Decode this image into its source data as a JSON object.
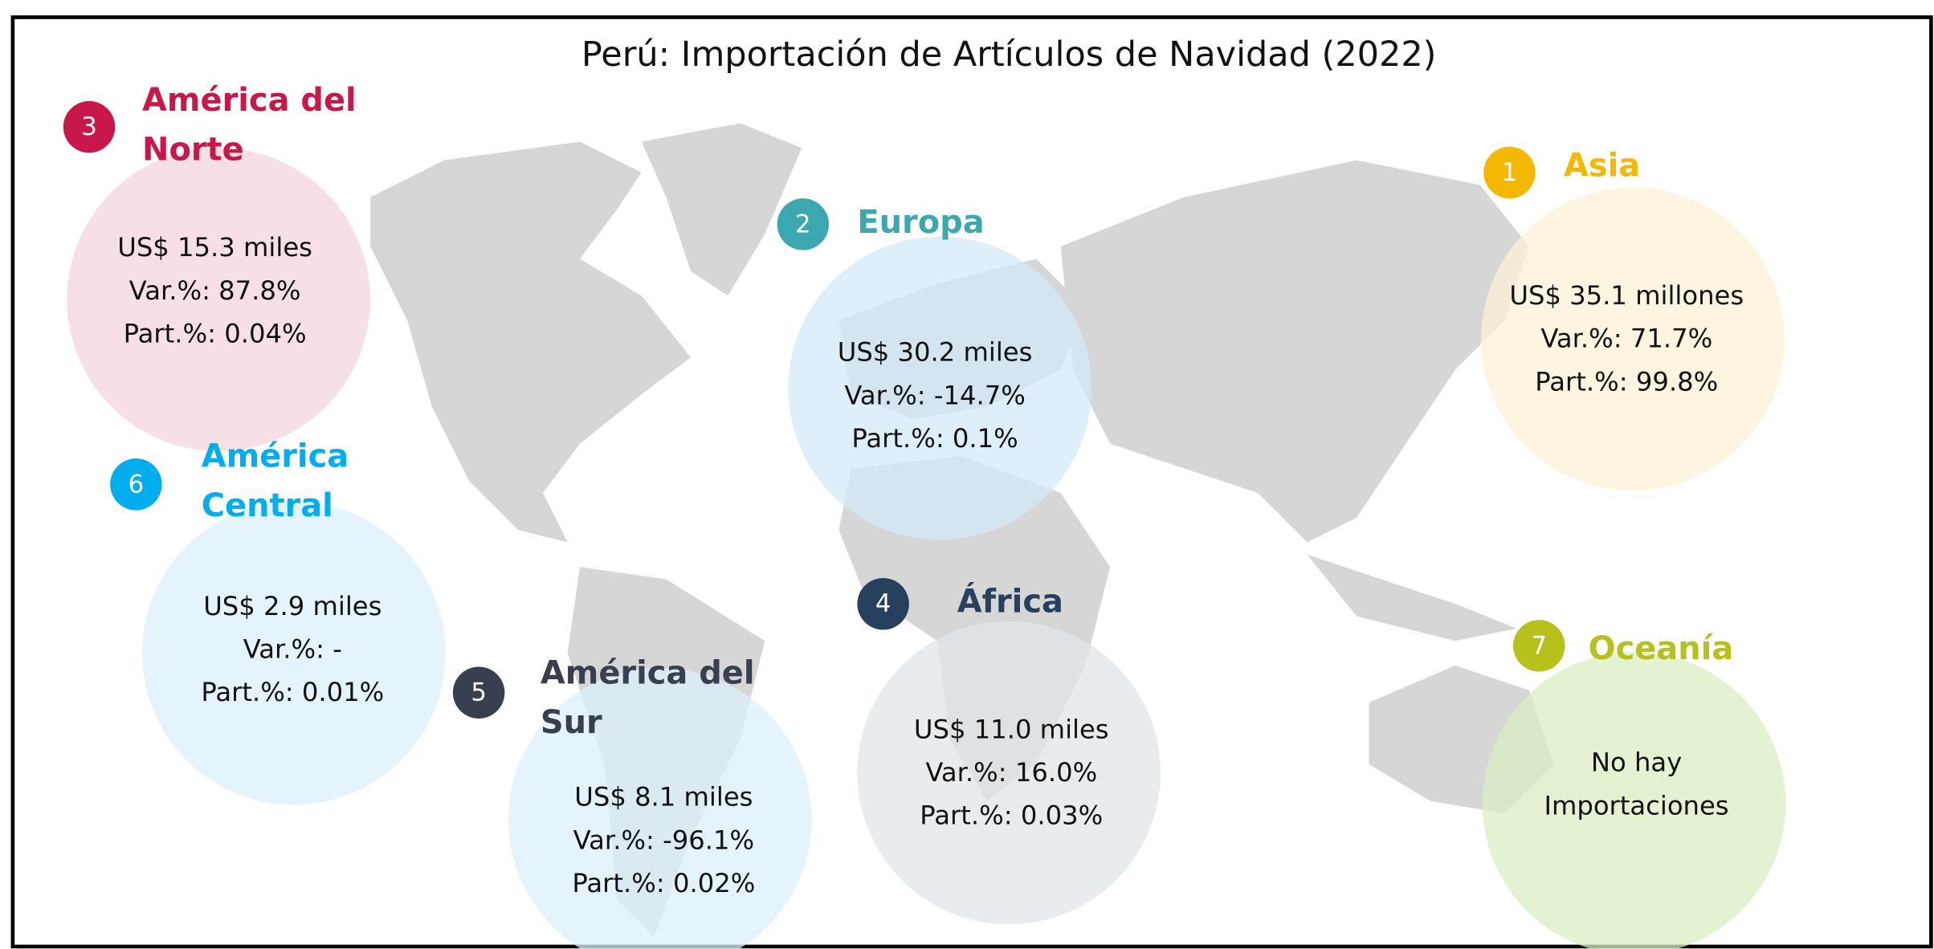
{
  "title": "Perú: Importación de Artículos de Navidad (2022)",
  "regions": [
    {
      "rank": "3",
      "name_lines": [
        "América del",
        "Norte"
      ],
      "lines": [
        "US$ 15.3 miles",
        "Var.%: 87.8%",
        "Part.%: 0.04%"
      ]
    },
    {
      "rank": "2",
      "name_lines": [
        "Europa"
      ],
      "lines": [
        "US$ 30.2 miles",
        "Var.%: -14.7%",
        "Part.%: 0.1%"
      ]
    },
    {
      "rank": "1",
      "name_lines": [
        "Asia"
      ],
      "lines": [
        "US$ 35.1 millones",
        "Var.%: 71.7%",
        "Part.%: 99.8%"
      ]
    },
    {
      "rank": "6",
      "name_lines": [
        "América",
        "Central"
      ],
      "lines": [
        "US$ 2.9 miles",
        "Var.%: -",
        "Part.%: 0.01%"
      ]
    },
    {
      "rank": "5",
      "name_lines": [
        "América del",
        "Sur"
      ],
      "lines": [
        "US$ 8.1 miles",
        "Var.%: -96.1%",
        "Part.%: 0.02%"
      ]
    },
    {
      "rank": "4",
      "name_lines": [
        "África"
      ],
      "lines": [
        "US$ 11.0 miles",
        "Var.%: 16.0%",
        "Part.%: 0.03%"
      ]
    },
    {
      "rank": "7",
      "name_lines": [
        "Oceanía"
      ],
      "lines": [
        "No hay",
        "Importaciones"
      ]
    }
  ]
}
